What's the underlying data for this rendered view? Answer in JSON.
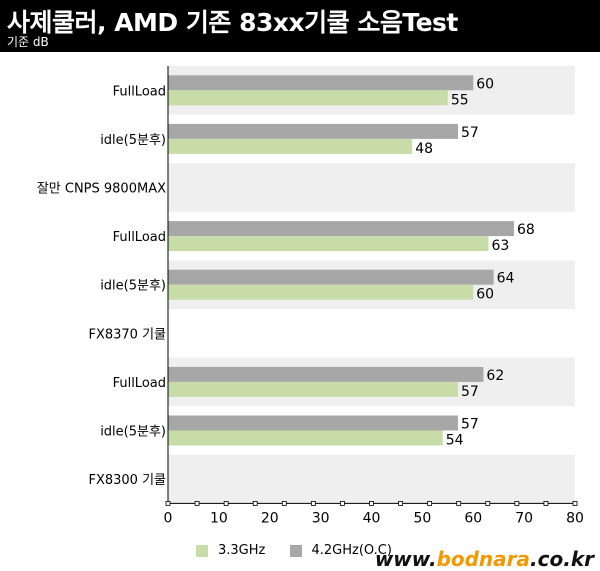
{
  "header": {
    "title": "사제쿨러, AMD 기존 83xx기쿨  소음Test",
    "subtitle": "기준 dB"
  },
  "colors": {
    "series_a": "#c8dcaa",
    "series_b": "#a7a7a7",
    "band": "#efefef"
  },
  "legend": {
    "a_label": "3.3GHz",
    "b_label": "4.2GHz(O.C)"
  },
  "watermark": {
    "prefix": "www.",
    "brand": "bodnara",
    "suffix": ".co.kr"
  },
  "chart_data": {
    "type": "bar",
    "orientation": "horizontal",
    "categories": [
      "FullLoad",
      "idle(5분후)",
      "잘만 CNPS 9800MAX",
      "FullLoad",
      "idle(5분후)",
      "FX8370 기쿨",
      "FullLoad",
      "idle(5분후)",
      "FX8300 기쿨"
    ],
    "series": [
      {
        "name": "4.2GHz(O.C)",
        "values": [
          60,
          57,
          null,
          68,
          64,
          null,
          62,
          57,
          null
        ]
      },
      {
        "name": "3.3GHz",
        "values": [
          55,
          48,
          null,
          63,
          60,
          null,
          57,
          54,
          null
        ]
      }
    ],
    "xlim": [
      0,
      80
    ],
    "xticks": [
      0,
      10,
      20,
      30,
      40,
      50,
      60,
      70,
      80
    ],
    "legend_position": "bottom",
    "grid": false
  }
}
